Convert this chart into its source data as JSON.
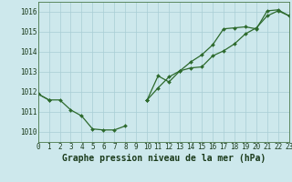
{
  "title": "Graphe pression niveau de la mer (hPa)",
  "hours": [
    0,
    1,
    2,
    3,
    4,
    5,
    6,
    7,
    8,
    9,
    10,
    11,
    12,
    13,
    14,
    15,
    16,
    17,
    18,
    19,
    20,
    21,
    22,
    23
  ],
  "line_bottom": [
    1011.9,
    1011.6,
    1011.6,
    1011.1,
    1010.8,
    1010.15,
    1010.1,
    1010.1,
    1010.3,
    null,
    1011.6,
    null,
    null,
    null,
    null,
    null,
    null,
    null,
    null,
    null,
    null,
    null,
    null,
    null
  ],
  "line_mid": [
    1011.9,
    1011.6,
    null,
    null,
    null,
    null,
    null,
    null,
    null,
    null,
    1011.6,
    1012.2,
    1012.75,
    1013.05,
    1013.2,
    1013.25,
    1013.8,
    1014.05,
    1014.4,
    1014.9,
    1015.2,
    1015.8,
    1016.05,
    1015.8
  ],
  "line_top": [
    null,
    null,
    null,
    null,
    null,
    null,
    null,
    null,
    null,
    null,
    1011.6,
    1012.8,
    1012.5,
    1013.05,
    1013.5,
    1013.85,
    1014.35,
    1015.15,
    1015.2,
    1015.25,
    1015.15,
    1016.05,
    1016.1,
    1015.8
  ],
  "line_color": "#2d6a2d",
  "bg_color": "#cde8ec",
  "grid_color": "#a8cdd4",
  "ylim_min": 1009.5,
  "ylim_max": 1016.5,
  "yticks": [
    1010,
    1011,
    1012,
    1013,
    1014,
    1015,
    1016
  ],
  "title_fontsize": 7,
  "tick_fontsize": 5.5
}
